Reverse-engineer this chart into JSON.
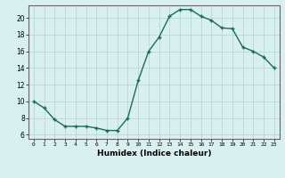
{
  "x": [
    0,
    1,
    2,
    3,
    4,
    5,
    6,
    7,
    8,
    9,
    10,
    11,
    12,
    13,
    14,
    15,
    16,
    17,
    18,
    19,
    20,
    21,
    22,
    23
  ],
  "y": [
    10,
    9.2,
    7.8,
    7,
    7,
    7,
    6.8,
    6.5,
    6.5,
    8,
    12.5,
    16,
    17.7,
    20.2,
    21,
    21,
    20.2,
    19.7,
    18.8,
    18.7,
    16.5,
    16,
    15.3,
    14
  ],
  "line_color": "#1a6b5a",
  "marker_color": "#1a6b5a",
  "bg_color": "#d9f0f0",
  "grid_color": "#b8d8d8",
  "xlabel": "Humidex (Indice chaleur)",
  "xlim": [
    -0.5,
    23.5
  ],
  "ylim": [
    5.5,
    21.5
  ],
  "yticks": [
    6,
    8,
    10,
    12,
    14,
    16,
    18,
    20
  ],
  "xticks": [
    0,
    1,
    2,
    3,
    4,
    5,
    6,
    7,
    8,
    9,
    10,
    11,
    12,
    13,
    14,
    15,
    16,
    17,
    18,
    19,
    20,
    21,
    22,
    23
  ],
  "xtick_labels": [
    "0",
    "1",
    "2",
    "3",
    "4",
    "5",
    "6",
    "7",
    "8",
    "9",
    "10",
    "11",
    "12",
    "13",
    "14",
    "15",
    "16",
    "17",
    "18",
    "19",
    "20",
    "21",
    "22",
    "23"
  ]
}
